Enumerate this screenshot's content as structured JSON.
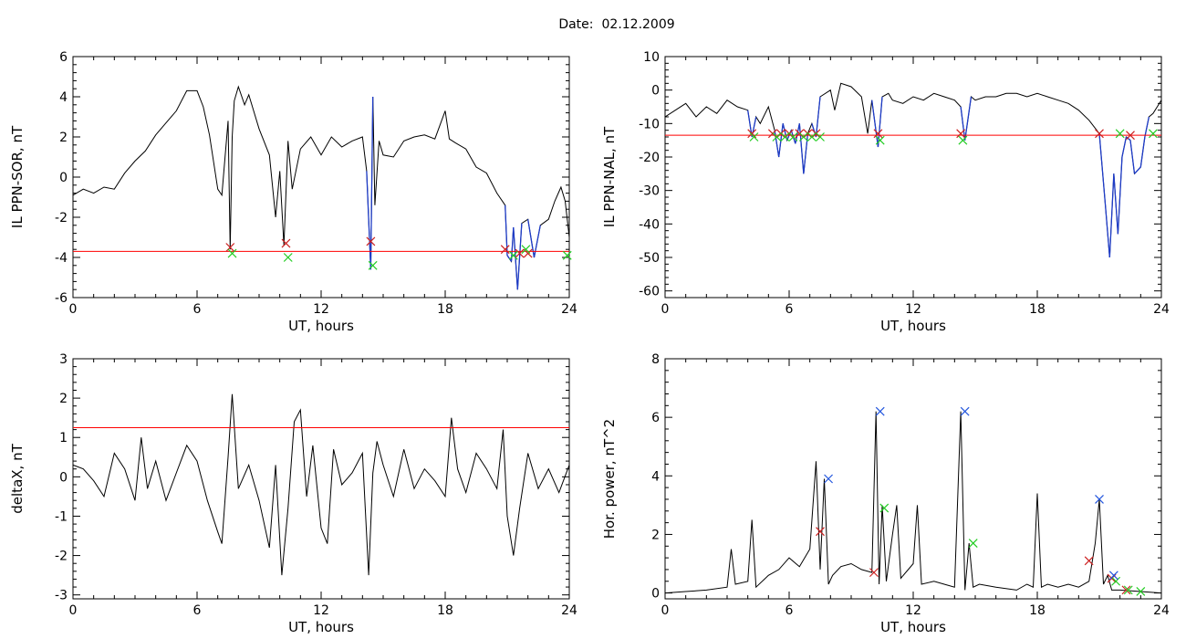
{
  "page": {
    "date_label": "Date:",
    "date_value": "02.12.2009"
  },
  "colors": {
    "trace": "#000000",
    "threshold": "#ff0000",
    "event": "#1e3cc8",
    "marker_start": "#cc1f1f",
    "marker_end": "#22cc22",
    "marker_peak": "#2255dd"
  },
  "chart_data": [
    {
      "id": "sor",
      "type": "line",
      "xlabel": "UT, hours",
      "ylabel": "IL PPN-SOR, nT",
      "xlim": [
        0,
        24
      ],
      "ylim": [
        -6,
        6
      ],
      "xticks": [
        0,
        6,
        12,
        18,
        24
      ],
      "yticks": [
        -6,
        -4,
        -2,
        0,
        2,
        4,
        6
      ],
      "threshold": -3.7,
      "series": [
        {
          "x": [
            0,
            0.5,
            1,
            1.5,
            2,
            2.5,
            3,
            3.5,
            4,
            4.5,
            5,
            5.5,
            6,
            6.3,
            6.6,
            7,
            7.2,
            7.5,
            7.6,
            7.7,
            7.8,
            8,
            8.3,
            8.5,
            9,
            9.5,
            9.8,
            10,
            10.2,
            10.4,
            10.6,
            11,
            11.5,
            12,
            12.5,
            13,
            13.5,
            14,
            14.2,
            14.4,
            14.5,
            14.6,
            14.8,
            15,
            15.5,
            16,
            16.5,
            17,
            17.5,
            18,
            18.2,
            18.5,
            19,
            19.5,
            20,
            20.5,
            20.9,
            21,
            21.2,
            21.3,
            21.5,
            21.7,
            22,
            22.3,
            22.6,
            23,
            23.3,
            23.6,
            23.8,
            24
          ],
          "y": [
            -0.9,
            -0.6,
            -0.8,
            -0.5,
            -0.6,
            0.2,
            0.8,
            1.3,
            2.1,
            2.7,
            3.3,
            4.3,
            4.3,
            3.5,
            2.1,
            -0.6,
            -0.9,
            2.8,
            -3.6,
            2.0,
            3.8,
            4.5,
            3.6,
            4.1,
            2.4,
            1.1,
            -2.0,
            0.3,
            -3.4,
            1.8,
            -0.6,
            1.4,
            2.0,
            1.1,
            2.0,
            1.5,
            1.8,
            2.0,
            0.3,
            -4.6,
            4.0,
            -1.4,
            1.8,
            1.1,
            1.0,
            1.8,
            2.0,
            2.1,
            1.9,
            3.3,
            1.9,
            1.7,
            1.4,
            0.5,
            0.2,
            -0.8,
            -1.4,
            -3.9,
            -4.2,
            -2.5,
            -5.6,
            -2.3,
            -2.1,
            -4.0,
            -2.4,
            -2.1,
            -1.2,
            -0.5,
            -1.2,
            -3.0
          ]
        }
      ],
      "event_markers": {
        "start": [
          [
            7.6,
            -3.5
          ],
          [
            10.3,
            -3.3
          ],
          [
            14.4,
            -3.2
          ],
          [
            20.9,
            -3.6
          ],
          [
            21.6,
            -3.8
          ],
          [
            22.0,
            -3.8
          ]
        ],
        "end": [
          [
            7.7,
            -3.8
          ],
          [
            10.4,
            -4.0
          ],
          [
            14.5,
            -4.4
          ],
          [
            21.3,
            -3.9
          ],
          [
            21.9,
            -3.6
          ],
          [
            23.9,
            -3.9
          ]
        ]
      }
    },
    {
      "id": "nal",
      "type": "line",
      "xlabel": "UT, hours",
      "ylabel": "IL PPN-NAL, nT",
      "xlim": [
        0,
        24
      ],
      "ylim": [
        -62,
        10
      ],
      "xticks": [
        0,
        6,
        12,
        18,
        24
      ],
      "yticks": [
        -60,
        -50,
        -40,
        -30,
        -20,
        -10,
        0,
        10
      ],
      "threshold": -13.5,
      "series": [
        {
          "x": [
            0,
            0.5,
            1,
            1.5,
            2,
            2.5,
            3,
            3.5,
            4,
            4.2,
            4.4,
            4.6,
            5,
            5.3,
            5.5,
            5.7,
            5.9,
            6.1,
            6.3,
            6.5,
            6.7,
            6.9,
            7.1,
            7.3,
            7.5,
            8,
            8.2,
            8.5,
            9,
            9.5,
            9.8,
            10,
            10.3,
            10.5,
            10.8,
            11,
            11.5,
            12,
            12.5,
            13,
            13.5,
            14,
            14.3,
            14.5,
            14.8,
            15,
            15.5,
            16,
            16.5,
            17,
            17.5,
            18,
            18.5,
            19,
            19.5,
            20,
            20.5,
            21,
            21.3,
            21.5,
            21.7,
            21.9,
            22.1,
            22.3,
            22.5,
            22.7,
            23,
            23.2,
            23.4,
            23.6,
            24
          ],
          "y": [
            -8,
            -6,
            -4,
            -8,
            -5,
            -7,
            -3,
            -5,
            -6,
            -14,
            -8,
            -10,
            -5,
            -12,
            -20,
            -10,
            -15,
            -12,
            -16,
            -10,
            -25,
            -13,
            -10,
            -14,
            -2,
            0,
            -6,
            2,
            1,
            -2,
            -13,
            -3,
            -17,
            -2,
            -1,
            -3,
            -4,
            -2,
            -3,
            -1,
            -2,
            -3,
            -5,
            -15,
            -2,
            -3,
            -2,
            -2,
            -1,
            -1,
            -2,
            -1,
            -2,
            -3,
            -4,
            -6,
            -9,
            -13,
            -35,
            -50,
            -25,
            -43,
            -20,
            -14,
            -15,
            -25,
            -23,
            -14,
            -8,
            -7,
            -3
          ]
        }
      ],
      "event_markers": {
        "start": [
          [
            4.2,
            -13
          ],
          [
            5.2,
            -13
          ],
          [
            5.6,
            -13
          ],
          [
            6.0,
            -13
          ],
          [
            6.5,
            -13
          ],
          [
            6.9,
            -13
          ],
          [
            7.3,
            -13
          ],
          [
            10.3,
            -13
          ],
          [
            14.3,
            -13
          ],
          [
            21.0,
            -13
          ],
          [
            22.5,
            -13.5
          ]
        ],
        "end": [
          [
            4.3,
            -14
          ],
          [
            5.4,
            -14
          ],
          [
            5.8,
            -14
          ],
          [
            6.2,
            -14
          ],
          [
            6.7,
            -14
          ],
          [
            7.1,
            -14
          ],
          [
            7.5,
            -14
          ],
          [
            10.4,
            -15
          ],
          [
            14.4,
            -15
          ],
          [
            22.0,
            -13
          ],
          [
            23.6,
            -13
          ]
        ]
      }
    },
    {
      "id": "deltax",
      "type": "line",
      "xlabel": "UT, hours",
      "ylabel": "deltaX, nT",
      "xlim": [
        0,
        24
      ],
      "ylim": [
        -3.1,
        3
      ],
      "xticks": [
        0,
        6,
        12,
        18,
        24
      ],
      "yticks": [
        -3,
        -2,
        -1,
        0,
        1,
        2,
        3
      ],
      "threshold": 1.25,
      "series": [
        {
          "x": [
            0,
            0.5,
            1,
            1.5,
            2,
            2.5,
            3,
            3.3,
            3.6,
            4,
            4.5,
            5,
            5.5,
            6,
            6.5,
            7,
            7.2,
            7.5,
            7.7,
            8,
            8.5,
            9,
            9.5,
            9.8,
            10.1,
            10.4,
            10.7,
            11,
            11.3,
            11.6,
            12,
            12.3,
            12.6,
            13,
            13.5,
            14,
            14.3,
            14.5,
            14.7,
            15,
            15.5,
            16,
            16.5,
            17,
            17.5,
            18,
            18.3,
            18.6,
            19,
            19.5,
            20,
            20.5,
            20.8,
            21,
            21.3,
            21.6,
            22,
            22.5,
            23,
            23.5,
            24
          ],
          "y": [
            0.3,
            0.2,
            -0.1,
            -0.5,
            0.6,
            0.2,
            -0.6,
            1.0,
            -0.3,
            0.4,
            -0.6,
            0.1,
            0.8,
            0.4,
            -0.6,
            -1.4,
            -1.7,
            0.5,
            2.1,
            -0.3,
            0.3,
            -0.6,
            -1.8,
            0.3,
            -2.5,
            -0.8,
            1.4,
            1.7,
            -0.5,
            0.8,
            -1.3,
            -1.7,
            0.7,
            -0.2,
            0.1,
            0.6,
            -2.5,
            0.1,
            0.9,
            0.3,
            -0.5,
            0.7,
            -0.3,
            0.2,
            -0.1,
            -0.5,
            1.5,
            0.2,
            -0.4,
            0.6,
            0.2,
            -0.3,
            1.2,
            -1.0,
            -2.0,
            -0.8,
            0.6,
            -0.3,
            0.2,
            -0.4,
            0.3
          ]
        }
      ]
    },
    {
      "id": "power",
      "type": "line",
      "xlabel": "UT, hours",
      "ylabel": "Hor. power, nT^2",
      "xlim": [
        0,
        24
      ],
      "ylim": [
        -0.2,
        8
      ],
      "xticks": [
        0,
        6,
        12,
        18,
        24
      ],
      "yticks": [
        0,
        2,
        4,
        6,
        8
      ],
      "series": [
        {
          "x": [
            0,
            1,
            2,
            3,
            3.2,
            3.4,
            4,
            4.2,
            4.4,
            5,
            5.5,
            6,
            6.5,
            7,
            7.3,
            7.5,
            7.7,
            7.9,
            8.1,
            8.5,
            9,
            9.5,
            10,
            10.2,
            10.35,
            10.5,
            10.7,
            11,
            11.2,
            11.4,
            12,
            12.2,
            12.4,
            13,
            13.5,
            14,
            14.3,
            14.5,
            14.7,
            14.9,
            15.2,
            16,
            17,
            17.5,
            17.8,
            18,
            18.2,
            18.5,
            19,
            19.5,
            20,
            20.5,
            20.8,
            21.0,
            21.2,
            21.4,
            21.6,
            22,
            23,
            24
          ],
          "y": [
            0,
            0.05,
            0.1,
            0.2,
            1.5,
            0.3,
            0.4,
            2.5,
            0.2,
            0.6,
            0.8,
            1.2,
            0.9,
            1.5,
            4.5,
            0.8,
            3.9,
            0.3,
            0.6,
            0.9,
            1.0,
            0.8,
            0.7,
            6.2,
            0.3,
            3.0,
            0.4,
            2.0,
            3.0,
            0.5,
            1.0,
            3.0,
            0.3,
            0.4,
            0.3,
            0.2,
            6.2,
            0.1,
            1.7,
            0.2,
            0.3,
            0.2,
            0.1,
            0.3,
            0.2,
            3.4,
            0.2,
            0.3,
            0.2,
            0.3,
            0.2,
            0.4,
            1.7,
            3.2,
            0.3,
            0.6,
            0.1,
            0.1,
            0.05,
            0
          ]
        }
      ],
      "event_markers": {
        "start": [
          [
            7.5,
            2.1
          ],
          [
            10.1,
            0.7
          ],
          [
            20.5,
            1.1
          ],
          [
            21.6,
            0.5
          ],
          [
            22.3,
            0.1
          ]
        ],
        "peak": [
          [
            7.9,
            3.9
          ],
          [
            10.4,
            6.2
          ],
          [
            14.5,
            6.2
          ],
          [
            21.0,
            3.2
          ],
          [
            21.7,
            0.6
          ]
        ],
        "end": [
          [
            10.6,
            2.9
          ],
          [
            14.9,
            1.7
          ],
          [
            21.8,
            0.4
          ],
          [
            22.4,
            0.1
          ],
          [
            23.0,
            0.05
          ]
        ]
      }
    }
  ]
}
